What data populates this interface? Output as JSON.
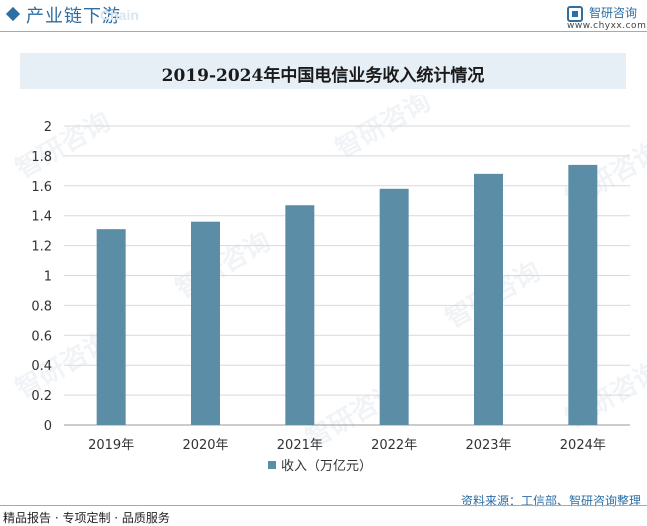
{
  "header": {
    "title": "产业链下游",
    "watermark": "Chain",
    "logo_name": "智研咨询",
    "logo_url": "www.chyxx.com"
  },
  "watermarks": [
    "智研咨询",
    "智研咨询",
    "智研咨询",
    "智研咨询",
    "智研咨询",
    "智研咨询",
    "智研咨询",
    "智研咨询"
  ],
  "footer": {
    "left": "精品报告 · 专项定制 · 品质服务",
    "source": "资料来源：工信部、智研咨询整理"
  },
  "colors": {
    "bar": "#5b8ea6",
    "accent": "#2d6ea3",
    "title_band": "#e6eef6"
  },
  "chart_data": {
    "type": "bar",
    "title": "2019-2024年中国电信业务收入统计情况",
    "categories": [
      "2019年",
      "2020年",
      "2021年",
      "2022年",
      "2023年",
      "2024年"
    ],
    "series": [
      {
        "name": "收入（万亿元）",
        "values": [
          1.31,
          1.36,
          1.47,
          1.58,
          1.68,
          1.74
        ]
      }
    ],
    "yticks": [
      "0",
      "0.2",
      "0.4",
      "0.6",
      "0.8",
      "1",
      "1.2",
      "1.4",
      "1.6",
      "1.8",
      "2"
    ],
    "ylim": [
      0,
      2
    ],
    "grid": true,
    "legend_position": "bottom"
  }
}
